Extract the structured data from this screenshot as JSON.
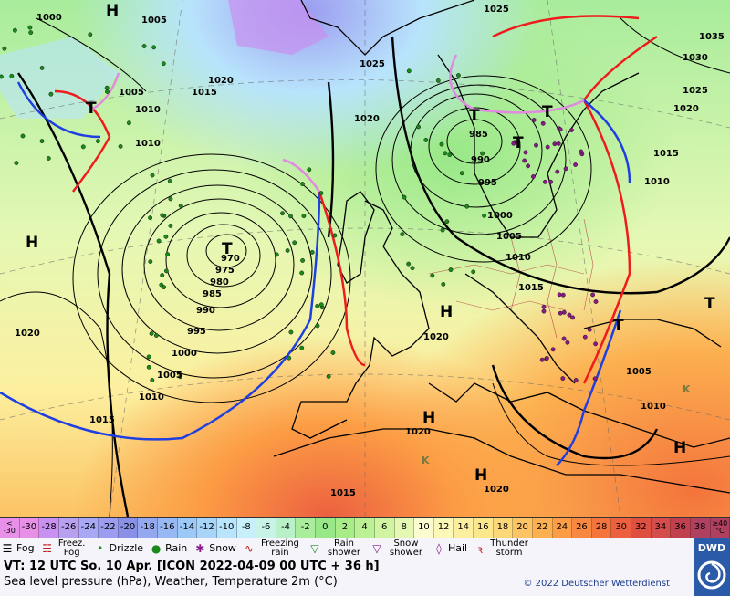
{
  "map": {
    "pressure_labels": [
      "1000",
      "1005",
      "1025",
      "1035",
      "1030",
      "1025",
      "1020",
      "1015",
      "1020",
      "1010",
      "1005",
      "1015",
      "1010",
      "970",
      "975",
      "980",
      "985",
      "990",
      "995",
      "1000",
      "1005",
      "1010",
      "1015",
      "1020",
      "1020",
      "985",
      "990",
      "995",
      "1000",
      "1005",
      "1010",
      "1015",
      "1020",
      "1005",
      "1010",
      "1020",
      "1025",
      "1020",
      "1015",
      "1010"
    ],
    "centers": [
      "H",
      "H",
      "T",
      "T",
      "H",
      "H",
      "H",
      "T",
      "T",
      "H",
      "T",
      "T",
      "T",
      "K",
      "K"
    ],
    "colors": {
      "high_label": "#000000",
      "front_cold": "#1f3fe0",
      "front_warm": "#ee1c1c",
      "occlusion": "#e08ae0",
      "coast": "#000000",
      "isobar": "#000000"
    }
  },
  "scale": {
    "left_label_top": "<",
    "left_label_bottom": "-30",
    "values": [
      "-30",
      "-28",
      "-26",
      "-24",
      "-22",
      "-20",
      "-18",
      "-16",
      "-14",
      "-12",
      "-10",
      "-8",
      "-6",
      "-4",
      "-2",
      "0",
      "2",
      "4",
      "6",
      "8",
      "10",
      "12",
      "14",
      "16",
      "18",
      "20",
      "22",
      "24",
      "26",
      "28",
      "30",
      "32",
      "34",
      "36",
      "38"
    ],
    "right_label_top": "≥40",
    "right_label_bottom": "°C",
    "colors": [
      "#e890e8",
      "#c890f0",
      "#b8a0f0",
      "#a8a8f4",
      "#9c9cf0",
      "#8890e8",
      "#94a8f0",
      "#98b8f4",
      "#9cc8f8",
      "#a8d4f8",
      "#b8e4fc",
      "#c8f0fc",
      "#c8f4e8",
      "#b8f0c8",
      "#a8ec9c",
      "#98e888",
      "#a8ec88",
      "#bcf094",
      "#d0f4a0",
      "#e4f8b4",
      "#fcfcd0",
      "#fcf8b8",
      "#fcf0a0",
      "#fce88c",
      "#fcd878",
      "#fcc464",
      "#fcb050",
      "#fc9c44",
      "#f88840",
      "#f4743c",
      "#ec6040",
      "#e05040",
      "#d44c4c",
      "#c04050",
      "#b04060"
    ]
  },
  "legend": {
    "fog": "Fog",
    "freezing_fog": "Freez. Fog",
    "drizzle": "Drizzle",
    "rain": "Rain",
    "snow": "Snow",
    "freezing_rain": "Freezing rain",
    "rain_shower": "Rain shower",
    "snow_shower": "Snow shower",
    "hail": "Hail",
    "thunderstorm": "Thunder storm"
  },
  "info": {
    "valid_time": "VT: 12 UTC So.  10 Apr. [ICON 2022-04-09  00 UTC + 36 h]",
    "description": "Sea level pressure (hPa), Weather, Temperature 2m (°C)",
    "copyright": "© 2022 Deutscher Wetterdienst",
    "logo": "DWD"
  }
}
